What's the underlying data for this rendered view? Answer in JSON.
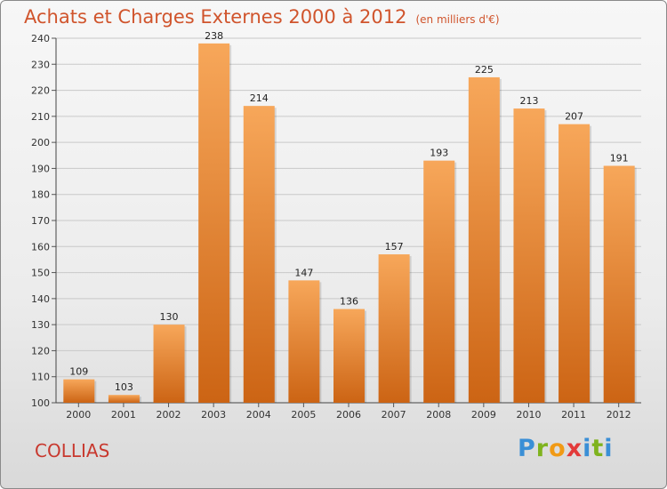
{
  "title": "Achats et Charges Externes 2000 à 2012",
  "subtitle": "(en milliers d'€)",
  "commune": "COLLIAS",
  "logo": {
    "letters": [
      "P",
      "r",
      "o",
      "x",
      "i",
      "t",
      "i"
    ]
  },
  "colors": {
    "bar_top": "#f7a75a",
    "bar_bottom": "#cc6414",
    "title": "#d0542c",
    "commune": "#c8382e",
    "logo": [
      "#3a8fd6",
      "#7fb31e",
      "#f19a15",
      "#e33a3a",
      "#3a8fd6",
      "#7fb31e",
      "#3a8fd6"
    ]
  },
  "chart_data": {
    "type": "bar",
    "title": "Achats et Charges Externes 2000 à 2012",
    "subtitle": "(en milliers d'€)",
    "categories": [
      "2000",
      "2001",
      "2002",
      "2003",
      "2004",
      "2005",
      "2006",
      "2007",
      "2008",
      "2009",
      "2010",
      "2011",
      "2012"
    ],
    "values": [
      109,
      103,
      130,
      238,
      214,
      147,
      136,
      157,
      193,
      225,
      213,
      207,
      191
    ],
    "ylim": [
      100,
      240
    ],
    "yticks": [
      100,
      110,
      120,
      130,
      140,
      150,
      160,
      170,
      180,
      190,
      200,
      210,
      220,
      230,
      240
    ],
    "grid": true,
    "data_labels": true
  }
}
